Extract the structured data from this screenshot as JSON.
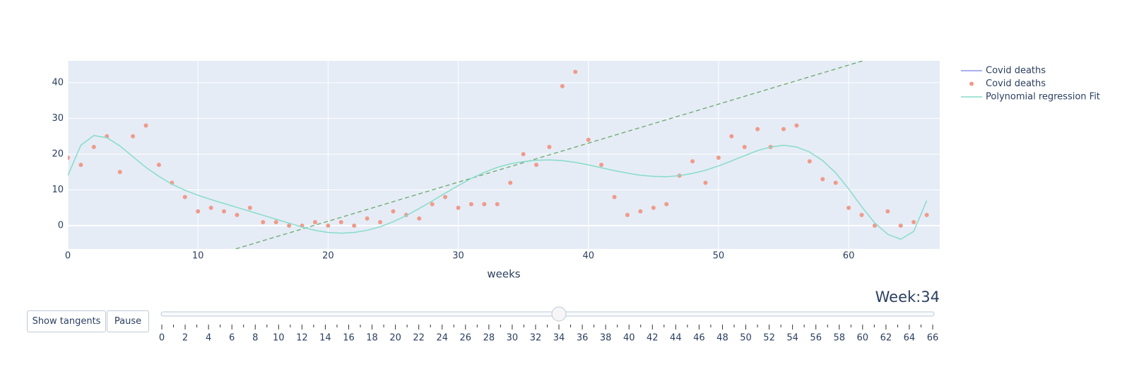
{
  "chart_data": {
    "type": "scatter",
    "xlabel": "weeks",
    "xlim": [
      0,
      67
    ],
    "ylim": [
      -6.5,
      46.1
    ],
    "xticks": [
      0,
      10,
      20,
      30,
      40,
      50,
      60
    ],
    "yticks": [
      0,
      10,
      20,
      30,
      40
    ],
    "grid": true,
    "legend": "right",
    "x": [
      0,
      1,
      2,
      3,
      4,
      5,
      6,
      7,
      8,
      9,
      10,
      11,
      12,
      13,
      14,
      15,
      16,
      17,
      18,
      19,
      20,
      21,
      22,
      23,
      24,
      25,
      26,
      27,
      28,
      29,
      30,
      31,
      32,
      33,
      34,
      35,
      36,
      37,
      38,
      39,
      40,
      41,
      42,
      43,
      44,
      45,
      46,
      47,
      48,
      49,
      50,
      51,
      52,
      53,
      54,
      55,
      56,
      57,
      58,
      59,
      60,
      61,
      62,
      63,
      64,
      65,
      66
    ],
    "series": [
      {
        "name": "Covid deaths",
        "mode": "lines",
        "color": "#8f96f0",
        "values": []
      },
      {
        "name": "Covid deaths",
        "mode": "markers",
        "color": "#f09a8a",
        "values": [
          19,
          17,
          22,
          25,
          15,
          25,
          28,
          17,
          12,
          8,
          4,
          5,
          4,
          3,
          5,
          1,
          1,
          0,
          0,
          1,
          0,
          1,
          0,
          2,
          1,
          4,
          3,
          2,
          6,
          8,
          5,
          6,
          6,
          6,
          12,
          20,
          17,
          22,
          39,
          43,
          24,
          17,
          8,
          3,
          4,
          5,
          6,
          14,
          18,
          12,
          19,
          25,
          22,
          27,
          22,
          27,
          28,
          18,
          13,
          12,
          5,
          3,
          0,
          4,
          0,
          1,
          3
        ]
      },
      {
        "name": "Polynomial regression Fit",
        "mode": "lines",
        "color": "#86dcc8",
        "values": [
          14,
          22.5,
          25.2,
          24.6,
          22.3,
          19.3,
          16.3,
          13.8,
          11.6,
          9.9,
          8.5,
          7.3,
          6.2,
          5.1,
          4.0,
          2.9,
          1.8,
          0.7,
          -0.4,
          -1.3,
          -1.9,
          -2.1,
          -1.9,
          -1.3,
          -0.3,
          1.1,
          2.8,
          4.8,
          6.9,
          9.1,
          11.2,
          13.2,
          14.9,
          16.3,
          17.3,
          17.9,
          18.3,
          18.4,
          18.2,
          17.7,
          17.0,
          16.2,
          15.4,
          14.7,
          14.1,
          13.8,
          13.7,
          14.0,
          14.6,
          15.5,
          16.7,
          18.1,
          19.6,
          21.0,
          22.0,
          22.5,
          22.0,
          20.6,
          18.2,
          14.8,
          10.3,
          5.3,
          0.8,
          -2.4,
          -3.8,
          -1.6,
          7.0
        ]
      }
    ],
    "tangent": {
      "color": "#6aa86a",
      "x": [
        12.9,
        61.1
      ],
      "values": [
        -6.5,
        46.1
      ]
    }
  },
  "slider": {
    "prefix": "Week:",
    "value": 34,
    "steps": [
      0,
      1,
      2,
      3,
      4,
      5,
      6,
      7,
      8,
      9,
      10,
      11,
      12,
      13,
      14,
      15,
      16,
      17,
      18,
      19,
      20,
      21,
      22,
      23,
      24,
      25,
      26,
      27,
      28,
      29,
      30,
      31,
      32,
      33,
      34,
      35,
      36,
      37,
      38,
      39,
      40,
      41,
      42,
      43,
      44,
      45,
      46,
      47,
      48,
      49,
      50,
      51,
      52,
      53,
      54,
      55,
      56,
      57,
      58,
      59,
      60,
      61,
      62,
      63,
      64,
      65,
      66
    ]
  },
  "buttons": [
    "Show tangents",
    "Pause"
  ]
}
